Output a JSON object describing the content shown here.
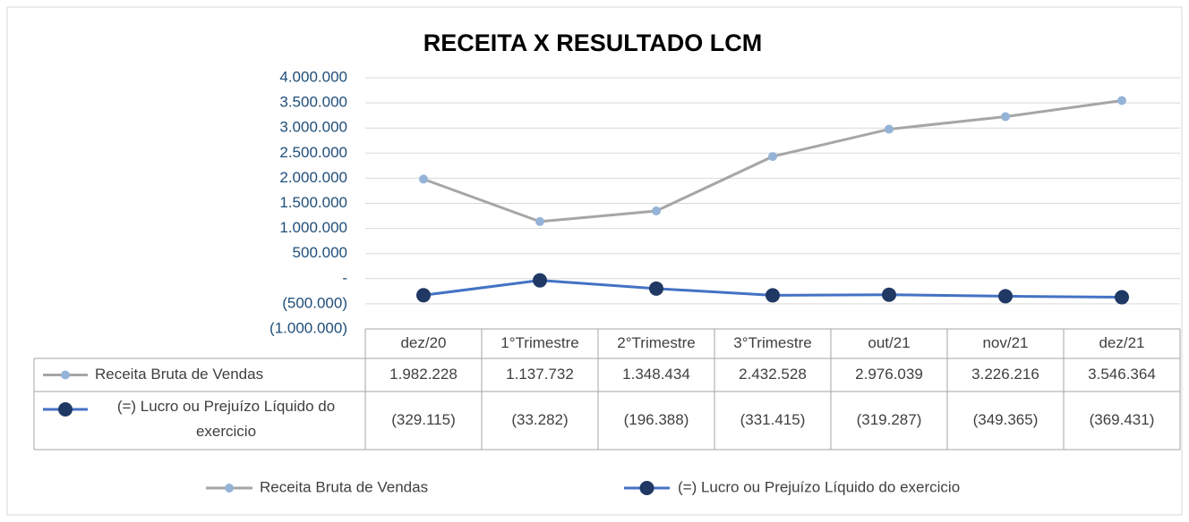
{
  "chart_data": {
    "type": "line",
    "title": "RECEITA X RESULTADO LCM",
    "categories": [
      "dez/20",
      "1°Trimestre",
      "2°Trimestre",
      "3°Trimestre",
      "out/21",
      "nov/21",
      "dez/21"
    ],
    "series": [
      {
        "name": "Receita Bruta de Vendas",
        "color": "#a6a6a6",
        "marker_color": "#95b3d7",
        "values": [
          1982228,
          1137732,
          1348434,
          2432528,
          2976039,
          3226216,
          3546364
        ],
        "value_labels": [
          "1.982.228",
          "1.137.732",
          "1.348.434",
          "2.432.528",
          "2.976.039",
          "3.226.216",
          "3.546.364"
        ]
      },
      {
        "name": "(=) Lucro ou Prejuízo Líquido do exercicio",
        "color": "#4472c4",
        "marker_color": "#1f3864",
        "values": [
          -329115,
          -33282,
          -196388,
          -331415,
          -319287,
          -349365,
          -369431
        ],
        "value_labels": [
          "(329.115)",
          "(33.282)",
          "(196.388)",
          "(331.415)",
          "(319.287)",
          "(349.365)",
          "(369.431)"
        ]
      }
    ],
    "ylim": [
      -1000000,
      4000000
    ],
    "yticks": [
      {
        "value": -1000000,
        "label": "(1.000.000)"
      },
      {
        "value": -500000,
        "label": "(500.000)"
      },
      {
        "value": 0,
        "label": "-"
      },
      {
        "value": 500000,
        "label": "500.000"
      },
      {
        "value": 1000000,
        "label": "1.000.000"
      },
      {
        "value": 1500000,
        "label": "1.500.000"
      },
      {
        "value": 2000000,
        "label": "2.000.000"
      },
      {
        "value": 2500000,
        "label": "2.500.000"
      },
      {
        "value": 3000000,
        "label": "3.000.000"
      },
      {
        "value": 3500000,
        "label": "3.500.000"
      },
      {
        "value": 4000000,
        "label": "4.000.000"
      }
    ],
    "grid": true,
    "data_table": true,
    "legend": "bottom"
  }
}
